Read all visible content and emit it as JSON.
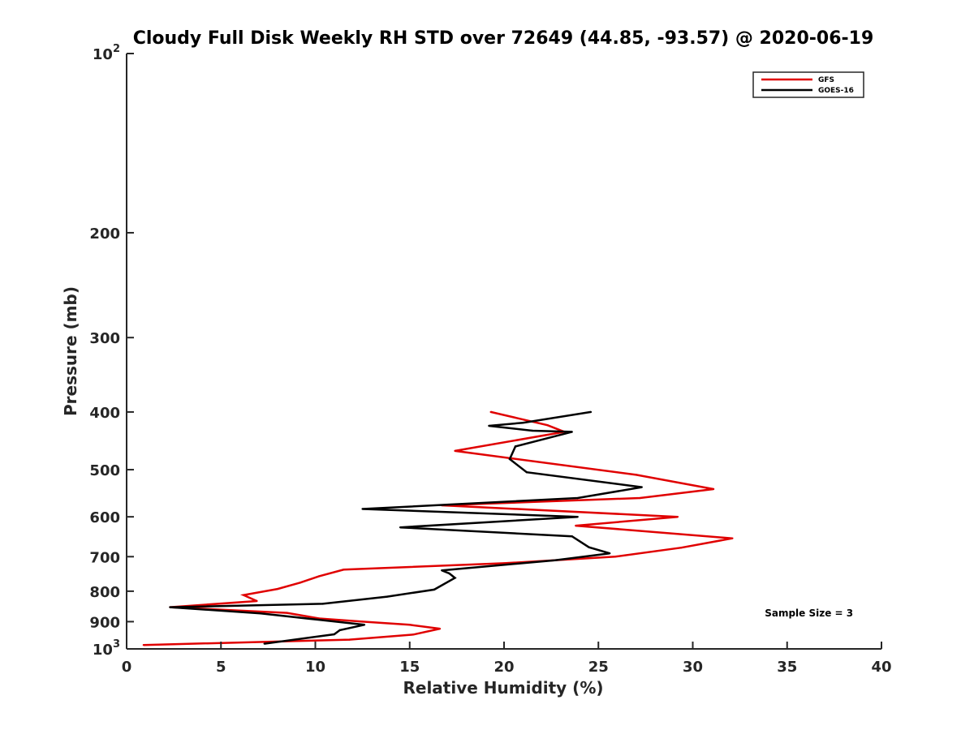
{
  "chart_data": {
    "type": "line",
    "title": "Cloudy Full Disk Weekly RH STD over 72649 (44.85, -93.57) @ 2020-06-19",
    "xlabel": "Relative Humidity (%)",
    "ylabel": "Pressure (mb)",
    "xlim": [
      0,
      40
    ],
    "ylim": [
      100,
      1000
    ],
    "y_scale": "log",
    "y_reversed": true,
    "x_ticks": [
      "0",
      "5",
      "10",
      "15",
      "20",
      "25",
      "30",
      "35",
      "40"
    ],
    "y_ticks": [
      {
        "value": 100,
        "label": "10",
        "sup": "2"
      },
      {
        "value": 200,
        "label": "200",
        "sup": ""
      },
      {
        "value": 300,
        "label": "300",
        "sup": ""
      },
      {
        "value": 400,
        "label": "400",
        "sup": ""
      },
      {
        "value": 500,
        "label": "500",
        "sup": ""
      },
      {
        "value": 600,
        "label": "600",
        "sup": ""
      },
      {
        "value": 700,
        "label": "700",
        "sup": ""
      },
      {
        "value": 800,
        "label": "800",
        "sup": ""
      },
      {
        "value": 900,
        "label": "900",
        "sup": ""
      },
      {
        "value": 1000,
        "label": "10",
        "sup": "3"
      }
    ],
    "grid": false,
    "legend_position": "top-right",
    "series": [
      {
        "name": "GFS",
        "color": "#e00000",
        "points": [
          [
            19.3,
            400
          ],
          [
            22.3,
            421
          ],
          [
            23.2,
            432
          ],
          [
            17.4,
            465
          ],
          [
            27.0,
            510
          ],
          [
            31.1,
            539
          ],
          [
            27.2,
            558
          ],
          [
            16.7,
            574
          ],
          [
            29.2,
            600
          ],
          [
            23.8,
            621
          ],
          [
            32.1,
            652
          ],
          [
            29.4,
            676
          ],
          [
            25.9,
            700
          ],
          [
            20.0,
            718
          ],
          [
            11.5,
            736
          ],
          [
            10.2,
            755
          ],
          [
            9.2,
            774
          ],
          [
            8.0,
            793
          ],
          [
            6.2,
            812
          ],
          [
            6.9,
            831
          ],
          [
            2.3,
            851
          ],
          [
            8.5,
            870
          ],
          [
            10.2,
            889
          ],
          [
            12.5,
            900
          ],
          [
            15.0,
            911
          ],
          [
            16.6,
            925
          ],
          [
            15.2,
            946
          ],
          [
            11.8,
            965
          ],
          [
            0.9,
            985
          ]
        ]
      },
      {
        "name": "GOES-16",
        "color": "#000000",
        "points": [
          [
            24.6,
            400
          ],
          [
            21.0,
            417
          ],
          [
            19.2,
            422
          ],
          [
            21.5,
            430
          ],
          [
            23.6,
            432
          ],
          [
            20.6,
            457
          ],
          [
            20.3,
            480
          ],
          [
            21.2,
            505
          ],
          [
            27.3,
            535
          ],
          [
            23.9,
            558
          ],
          [
            12.5,
            582
          ],
          [
            23.9,
            600
          ],
          [
            14.5,
            625
          ],
          [
            23.6,
            647
          ],
          [
            24.5,
            675
          ],
          [
            25.6,
            691
          ],
          [
            22.7,
            710
          ],
          [
            16.7,
            738
          ],
          [
            17.1,
            747
          ],
          [
            17.4,
            760
          ],
          [
            16.3,
            795
          ],
          [
            13.8,
            817
          ],
          [
            10.4,
            840
          ],
          [
            2.3,
            851
          ],
          [
            7.1,
            872
          ],
          [
            10.1,
            893
          ],
          [
            12.6,
            911
          ],
          [
            11.3,
            930
          ],
          [
            11.0,
            945
          ],
          [
            7.3,
            980
          ]
        ]
      }
    ],
    "annotations": [
      {
        "text": "Sample Size = 3",
        "x": 38.5,
        "y": 905
      }
    ]
  }
}
